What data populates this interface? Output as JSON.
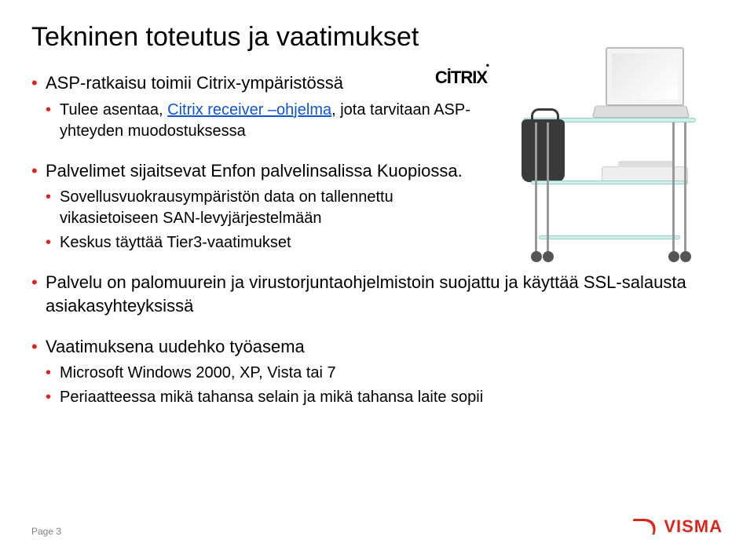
{
  "title": "Tekninen toteutus ja vaatimukset",
  "accent_color": "#d9261c",
  "link_color": "#1155cc",
  "bullets": {
    "b1": {
      "text_a": "ASP-ratkaisu toimii Citrix-ympäristössä",
      "sub1_a": "Tulee asentaa, ",
      "sub1_link": "Citrix receiver –ohjelma",
      "sub1_b": ", jota tarvitaan ASP-yhteyden muodostuksessa"
    },
    "b2": {
      "text": "Palvelimet sijaitsevat Enfon palvelinsalissa Kuopiossa.",
      "sub1": "Sovellusvuokrausympäristön data on tallennettu vikasietoiseen SAN-levyjärjestelmään",
      "sub2": "Keskus täyttää Tier3-vaatimukset"
    },
    "b3": {
      "text": "Palvelu on palomuurein ja virustorjuntaohjelmistoin suojattu ja käyttää SSL-salausta asiakasyhteyksissä"
    },
    "b4": {
      "text": "Vaatimuksena uudehko työasema",
      "sub1": "Microsoft Windows 2000, XP, Vista tai 7",
      "sub2": "Periaatteessa mikä tahansa selain ja mikä tahansa laite sopii"
    }
  },
  "citrix_logo_text": "CİTRIX",
  "footer": {
    "page_label": "Page 3"
  },
  "visma": {
    "text": "VISMA"
  }
}
